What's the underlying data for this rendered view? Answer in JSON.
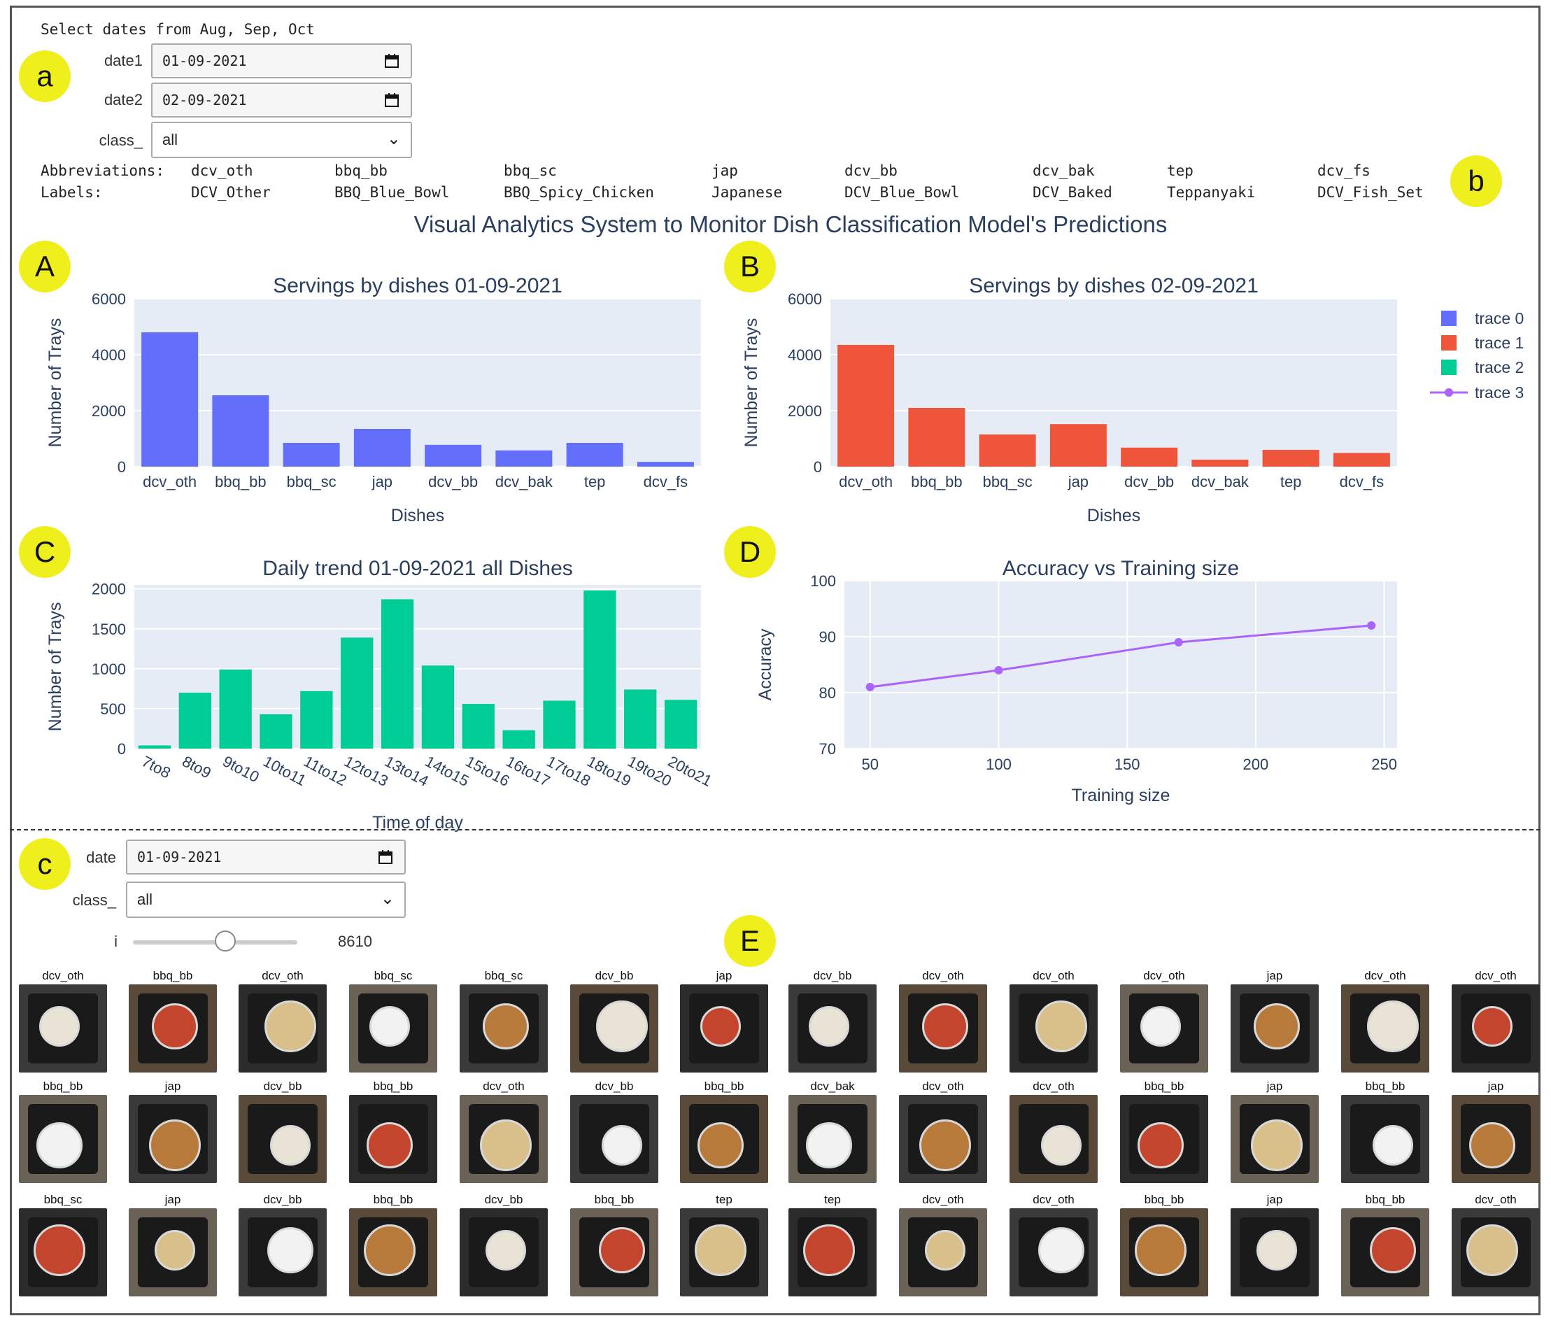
{
  "controls_top": {
    "heading": "Select dates from Aug, Sep, Oct",
    "date1_label": "date1",
    "date1_value": "01-09-2021",
    "date2_label": "date2",
    "date2_value": "02-09-2021",
    "class_label": "class_",
    "class_value": "all"
  },
  "abbreviations": {
    "abbr_label": "Abbreviations:",
    "labels_label": "Labels:",
    "items": [
      {
        "abbr": "dcv_oth",
        "label": "DCV_Other"
      },
      {
        "abbr": "bbq_bb",
        "label": "BBQ_Blue_Bowl"
      },
      {
        "abbr": "bbq_sc",
        "label": "BBQ_Spicy_Chicken"
      },
      {
        "abbr": "jap",
        "label": "Japanese"
      },
      {
        "abbr": "dcv_bb",
        "label": "DCV_Blue_Bowl"
      },
      {
        "abbr": "dcv_bak",
        "label": "DCV_Baked"
      },
      {
        "abbr": "tep",
        "label": "Teppanyaki"
      },
      {
        "abbr": "dcv_fs",
        "label": "DCV_Fish_Set"
      }
    ]
  },
  "markers": {
    "a": "a",
    "b": "b",
    "c": "c",
    "A": "A",
    "B": "B",
    "C": "C",
    "D": "D",
    "E": "E"
  },
  "main_title": "Visual Analytics System to Monitor Dish Classification Model's Predictions",
  "colors": {
    "trace0": "#636efa",
    "trace1": "#ef553b",
    "trace2": "#00cc96",
    "trace3": "#ab63fa",
    "plot_bg": "#e5ecf6",
    "marker": "#f0ef1e"
  },
  "legend": [
    "trace 0",
    "trace 1",
    "trace 2",
    "trace 3"
  ],
  "chart_data": [
    {
      "type": "bar",
      "title": "Servings by dishes 01-09-2021",
      "xlabel": "Dishes",
      "ylabel": "Number of Trays",
      "categories": [
        "dcv_oth",
        "bbq_bb",
        "bbq_sc",
        "jap",
        "dcv_bb",
        "dcv_bak",
        "tep",
        "dcv_fs"
      ],
      "values": [
        4800,
        2550,
        850,
        1350,
        780,
        580,
        850,
        170
      ],
      "ylim": [
        0,
        6000
      ],
      "yticks": [
        "0",
        "2000",
        "4000",
        "6000"
      ],
      "series_name": "trace 0"
    },
    {
      "type": "bar",
      "title": "Servings by dishes 02-09-2021",
      "xlabel": "Dishes",
      "ylabel": "Number of Trays",
      "categories": [
        "dcv_oth",
        "bbq_bb",
        "bbq_sc",
        "jap",
        "dcv_bb",
        "dcv_bak",
        "tep",
        "dcv_fs"
      ],
      "values": [
        4350,
        2100,
        1150,
        1520,
        680,
        250,
        600,
        490
      ],
      "ylim": [
        0,
        6000
      ],
      "yticks": [
        "0",
        "2000",
        "4000",
        "6000"
      ],
      "series_name": "trace 1"
    },
    {
      "type": "bar",
      "title": "Daily trend 01-09-2021 all Dishes",
      "xlabel": "Time of day",
      "ylabel": "Number of Trays",
      "categories": [
        "7to8",
        "8to9",
        "9to10",
        "10to11",
        "11to12",
        "12to13",
        "13to14",
        "14to15",
        "15to16",
        "16to17",
        "17to18",
        "18to19",
        "19to20",
        "20to21"
      ],
      "values": [
        40,
        700,
        990,
        430,
        720,
        1390,
        1870,
        1040,
        560,
        230,
        600,
        1980,
        740,
        610
      ],
      "ylim": [
        0,
        2050
      ],
      "yticks": [
        "0",
        "500",
        "1000",
        "1500",
        "2000"
      ],
      "series_name": "trace 2"
    },
    {
      "type": "line",
      "title": "Accuracy vs Training size",
      "xlabel": "Training size",
      "ylabel": "Accuracy",
      "x": [
        50,
        100,
        170,
        245
      ],
      "y": [
        81,
        84,
        89,
        92
      ],
      "xlim": [
        40,
        255
      ],
      "ylim": [
        70,
        100
      ],
      "xticks": [
        "50",
        "100",
        "150",
        "200",
        "250"
      ],
      "yticks": [
        "70",
        "80",
        "90",
        "100"
      ],
      "series_name": "trace 3"
    }
  ],
  "controls_bottom": {
    "date_label": "date",
    "date_value": "01-09-2021",
    "class_label": "class_",
    "class_value": "all",
    "slider_label": "i",
    "slider_value": "8610",
    "slider_fraction": 0.56
  },
  "gallery_left": [
    [
      "dcv_oth",
      "bbq_bb",
      "dcv_oth",
      "bbq_sc",
      "bbq_sc",
      "dcv_bb",
      "jap"
    ],
    [
      "bbq_bb",
      "jap",
      "dcv_bb",
      "bbq_bb",
      "dcv_oth",
      "dcv_bb",
      "bbq_bb"
    ],
    [
      "bbq_sc",
      "jap",
      "dcv_bb",
      "bbq_bb",
      "dcv_bb",
      "bbq_bb",
      "tep"
    ]
  ],
  "gallery_right": [
    [
      "dcv_bb",
      "dcv_oth",
      "dcv_oth",
      "dcv_oth",
      "jap",
      "dcv_oth",
      "dcv_oth"
    ],
    [
      "dcv_bak",
      "dcv_oth",
      "dcv_oth",
      "bbq_bb",
      "jap",
      "bbq_bb",
      "jap"
    ],
    [
      "tep",
      "dcv_oth",
      "dcv_oth",
      "bbq_bb",
      "jap",
      "bbq_bb",
      "dcv_oth"
    ]
  ]
}
